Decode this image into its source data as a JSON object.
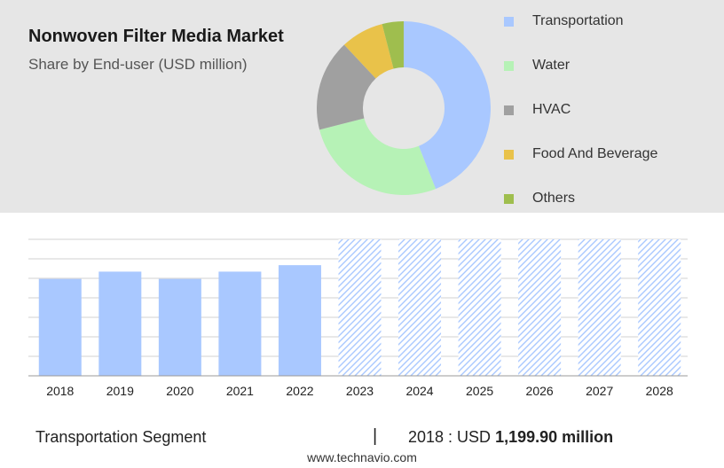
{
  "header": {
    "title": "Nonwoven Filter Media Market",
    "subtitle": "Share by End-user (USD million)"
  },
  "footer": {
    "segment_label": "Transportation Segment",
    "separator": "|",
    "year_prefix": "2018 : USD",
    "value_text": "1,199.90 million",
    "website": "www.technavio.com"
  },
  "colors": {
    "panel_bg": "#e6e6e6",
    "bar_actual": "#a9c8ff",
    "bar_forecast_hatch": "#a9c8ff",
    "grid": "#d0d0d0"
  },
  "chart_data": [
    {
      "type": "pie",
      "variant": "donut",
      "title": "Nonwoven Filter Media Market",
      "subtitle": "Share by End-user (USD million)",
      "legend_position": "right",
      "slices": [
        {
          "label": "Transportation",
          "value": 44,
          "color": "#a9c8ff"
        },
        {
          "label": "Water",
          "value": 27,
          "color": "#b6f2b6"
        },
        {
          "label": "HVAC",
          "value": 17,
          "color": "#a0a0a0"
        },
        {
          "label": "Food And Beverage",
          "value": 8,
          "color": "#e9c24a"
        },
        {
          "label": "Others",
          "value": 4,
          "color": "#9fbe4e"
        }
      ]
    },
    {
      "type": "bar",
      "categories": [
        "2018",
        "2019",
        "2020",
        "2021",
        "2022",
        "2023",
        "2024",
        "2025",
        "2026",
        "2027",
        "2028"
      ],
      "series": [
        {
          "values": [
            1199.9,
            1290,
            1200,
            1290,
            1370,
            1690,
            1690,
            1690,
            1690,
            1690,
            1690
          ]
        }
      ],
      "forecast_from": "2023",
      "ylim": [
        0,
        1690
      ],
      "grid": true
    }
  ]
}
